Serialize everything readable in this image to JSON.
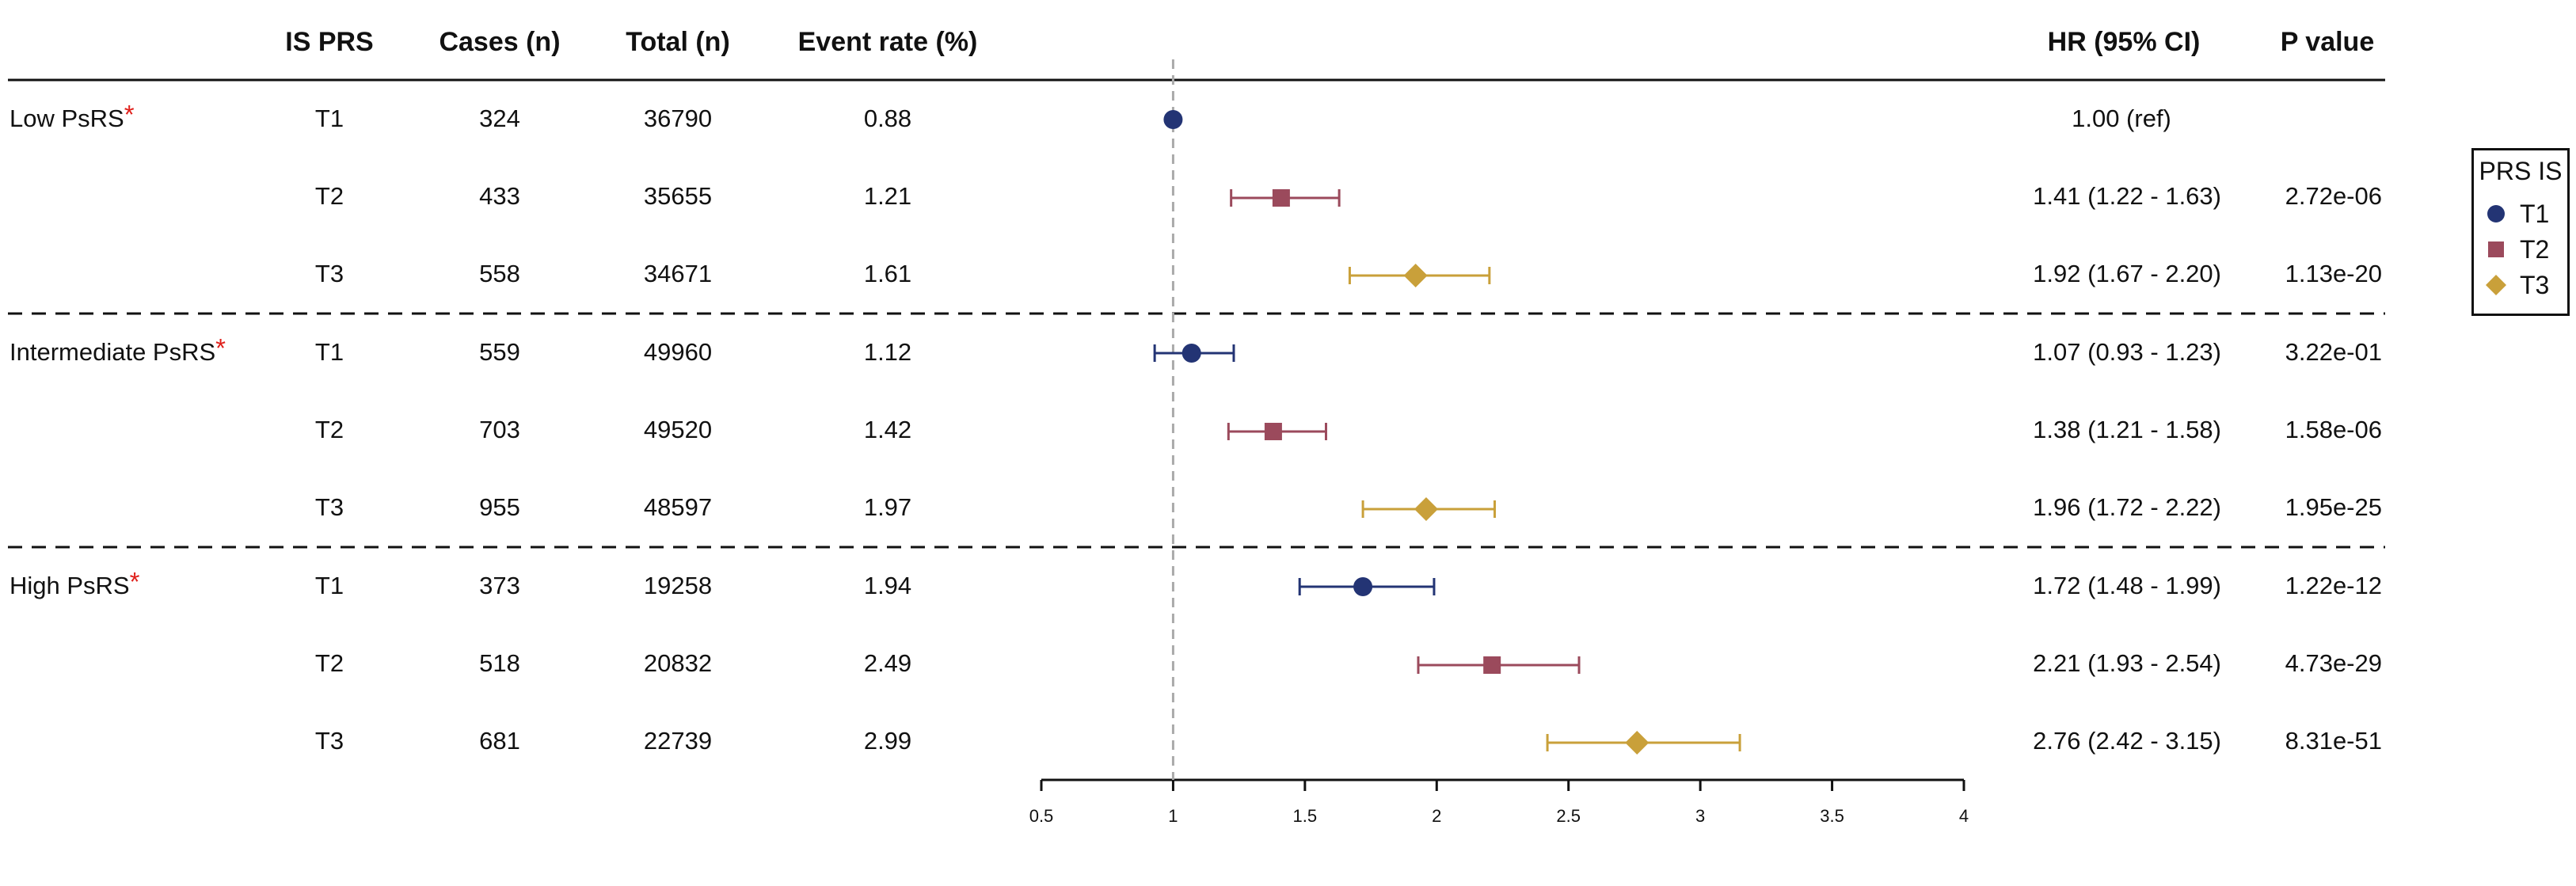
{
  "headers": {
    "is_prs": "IS PRS",
    "cases": "Cases (n)",
    "total": "Total (n)",
    "event_rate": "Event rate (%)",
    "hr": "HR (95% CI)",
    "p": "P value"
  },
  "groups": [
    {
      "label": "Low PsRS",
      "star": "*"
    },
    {
      "label": "Intermediate PsRS",
      "star": "*"
    },
    {
      "label": "High PsRS",
      "star": "*"
    }
  ],
  "rows": [
    {
      "tier": "T1",
      "cases": "324",
      "total": "36790",
      "rate": "0.88",
      "hr_text": "1.00 (ref)",
      "p": ""
    },
    {
      "tier": "T2",
      "cases": "433",
      "total": "35655",
      "rate": "1.21",
      "hr_text": "1.41 (1.22 - 1.63)",
      "p": "2.72e-06"
    },
    {
      "tier": "T3",
      "cases": "558",
      "total": "34671",
      "rate": "1.61",
      "hr_text": "1.92 (1.67 - 2.20)",
      "p": "1.13e-20"
    },
    {
      "tier": "T1",
      "cases": "559",
      "total": "49960",
      "rate": "1.12",
      "hr_text": "1.07 (0.93 - 1.23)",
      "p": "3.22e-01"
    },
    {
      "tier": "T2",
      "cases": "703",
      "total": "49520",
      "rate": "1.42",
      "hr_text": "1.38 (1.21 - 1.58)",
      "p": "1.58e-06"
    },
    {
      "tier": "T3",
      "cases": "955",
      "total": "48597",
      "rate": "1.97",
      "hr_text": "1.96 (1.72 - 2.22)",
      "p": "1.95e-25"
    },
    {
      "tier": "T1",
      "cases": "373",
      "total": "19258",
      "rate": "1.94",
      "hr_text": "1.72 (1.48 - 1.99)",
      "p": "1.22e-12"
    },
    {
      "tier": "T2",
      "cases": "518",
      "total": "20832",
      "rate": "2.49",
      "hr_text": "2.21 (1.93 - 2.54)",
      "p": "4.73e-29"
    },
    {
      "tier": "T3",
      "cases": "681",
      "total": "22739",
      "rate": "2.99",
      "hr_text": "2.76 (2.42 - 3.15)",
      "p": "8.31e-51"
    }
  ],
  "legend": {
    "title": "PRS IS",
    "items": [
      {
        "label": "T1",
        "shape": "circle"
      },
      {
        "label": "T2",
        "shape": "square"
      },
      {
        "label": "T3",
        "shape": "diamond"
      }
    ]
  },
  "colors": {
    "T1": "#233474",
    "T2": "#9b4a5c",
    "T3": "#c9a03a",
    "star": "#e0201b",
    "ref_line": "#aaaaaa"
  },
  "chart_data": {
    "type": "forest",
    "xlim": [
      0.5,
      4
    ],
    "x_ticks": [
      "0.5",
      "1",
      "1.5",
      "2",
      "2.5",
      "3",
      "3.5",
      "4"
    ],
    "reference_line": 1,
    "series": [
      {
        "name": "T1",
        "shape": "circle",
        "points": [
          {
            "hr": 1.0,
            "lo": null,
            "hi": null
          },
          {
            "hr": 1.07,
            "lo": 0.93,
            "hi": 1.23
          },
          {
            "hr": 1.72,
            "lo": 1.48,
            "hi": 1.99
          }
        ]
      },
      {
        "name": "T2",
        "shape": "square",
        "points": [
          {
            "hr": 1.41,
            "lo": 1.22,
            "hi": 1.63
          },
          {
            "hr": 1.38,
            "lo": 1.21,
            "hi": 1.58
          },
          {
            "hr": 2.21,
            "lo": 1.93,
            "hi": 2.54
          }
        ]
      },
      {
        "name": "T3",
        "shape": "diamond",
        "points": [
          {
            "hr": 1.92,
            "lo": 1.67,
            "hi": 2.2
          },
          {
            "hr": 1.96,
            "lo": 1.72,
            "hi": 2.22
          },
          {
            "hr": 2.76,
            "lo": 2.42,
            "hi": 3.15
          }
        ]
      }
    ]
  }
}
